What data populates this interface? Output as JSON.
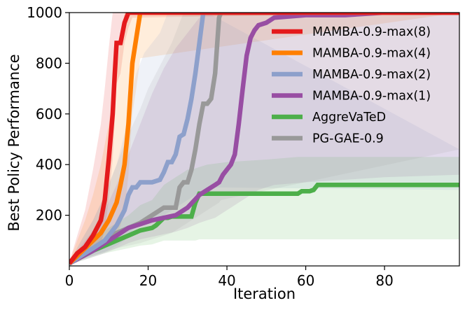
{
  "chart_data": {
    "type": "line",
    "title": "",
    "xlabel": "Iteration",
    "ylabel": "Best Policy Performance",
    "xlim": [
      0,
      99
    ],
    "ylim": [
      0,
      1000
    ],
    "xticks": [
      0,
      20,
      40,
      60,
      80
    ],
    "yticks": [
      200,
      400,
      600,
      800,
      1000
    ],
    "x_tick_labels": [
      "0",
      "20",
      "40",
      "60",
      "80"
    ],
    "y_tick_labels": [
      "200",
      "400",
      "600",
      "800",
      "1000"
    ],
    "legend_position": "top-right",
    "grid": false,
    "series": [
      {
        "name": "MAMBA-0.9-max(8)",
        "color": "#e41a1c",
        "x": [
          0,
          2,
          4,
          6,
          8,
          9,
          10,
          11,
          11.5,
          12,
          13,
          14,
          15,
          16,
          99
        ],
        "y": [
          10,
          50,
          75,
          120,
          180,
          260,
          420,
          600,
          750,
          880,
          880,
          960,
          1000,
          1000,
          1000
        ],
        "band_upper": [
          15,
          120,
          220,
          380,
          560,
          700,
          860,
          1000,
          1000,
          1000,
          1000,
          1000,
          1000,
          1000,
          1000
        ],
        "band_lower": [
          5,
          30,
          40,
          60,
          90,
          140,
          260,
          420,
          560,
          720,
          760,
          880,
          940,
          980,
          1000
        ]
      },
      {
        "name": "MAMBA-0.9-max(4)",
        "color": "#ff7f00",
        "x": [
          0,
          2,
          4,
          6,
          8,
          10,
          12,
          13,
          14,
          15,
          15.5,
          16,
          17,
          18,
          99
        ],
        "y": [
          10,
          40,
          70,
          100,
          130,
          180,
          250,
          320,
          400,
          560,
          680,
          800,
          900,
          1000,
          1000
        ],
        "band_upper": [
          15,
          100,
          180,
          280,
          400,
          560,
          760,
          900,
          1000,
          1000,
          1000,
          1000,
          1000,
          1000,
          1000
        ],
        "band_lower": [
          5,
          25,
          40,
          55,
          70,
          90,
          120,
          160,
          220,
          360,
          480,
          600,
          700,
          820,
          1000
        ]
      },
      {
        "name": "MAMBA-0.9-max(2)",
        "color": "#8da0cb",
        "x": [
          0,
          3,
          6,
          9,
          12,
          14,
          15,
          16,
          17,
          18,
          19,
          21,
          23,
          24,
          25,
          26,
          27,
          28,
          29,
          30,
          31,
          32,
          33,
          34,
          35,
          99
        ],
        "y": [
          10,
          40,
          70,
          100,
          160,
          220,
          280,
          310,
          310,
          330,
          330,
          330,
          340,
          370,
          410,
          410,
          440,
          510,
          520,
          580,
          660,
          760,
          880,
          1000,
          1000,
          1000
        ],
        "band_upper": [
          15,
          100,
          180,
          280,
          400,
          520,
          620,
          700,
          760,
          800,
          840,
          880,
          920,
          960,
          1000,
          1000,
          1000,
          1000,
          1000,
          1000,
          1000,
          1000,
          1000,
          1000,
          1000,
          460
        ],
        "band_lower": [
          5,
          25,
          40,
          55,
          80,
          100,
          120,
          140,
          150,
          160,
          170,
          180,
          190,
          200,
          210,
          220,
          230,
          240,
          250,
          260,
          270,
          280,
          290,
          300,
          310,
          300
        ]
      },
      {
        "name": "MAMBA-0.9-max(1)",
        "color": "#984ea3",
        "x": [
          0,
          3,
          6,
          9,
          12,
          15,
          18,
          21,
          24,
          27,
          30,
          33,
          35,
          37,
          38,
          39,
          40,
          41,
          42,
          43,
          44,
          45,
          46,
          47,
          48,
          50,
          52,
          60,
          70,
          80,
          99
        ],
        "y": [
          10,
          35,
          60,
          90,
          120,
          150,
          165,
          180,
          190,
          200,
          230,
          280,
          300,
          320,
          330,
          360,
          380,
          400,
          440,
          560,
          700,
          830,
          900,
          930,
          950,
          960,
          980,
          990,
          990,
          1000,
          1000
        ],
        "band_upper": [
          15,
          80,
          140,
          220,
          320,
          440,
          560,
          680,
          780,
          860,
          920,
          980,
          1000,
          1000,
          1000,
          1000,
          1000,
          1000,
          1000,
          1000,
          1000,
          1000,
          1000,
          1000,
          1000,
          1000,
          1000,
          1000,
          1000,
          1000,
          1000
        ],
        "band_lower": [
          5,
          20,
          35,
          50,
          70,
          90,
          105,
          115,
          125,
          135,
          150,
          170,
          180,
          190,
          200,
          210,
          220,
          230,
          240,
          250,
          260,
          270,
          280,
          290,
          300,
          310,
          320,
          330,
          340,
          350,
          360
        ]
      },
      {
        "name": "AggreVaTeD",
        "color": "#4daf4a",
        "x": [
          0,
          3,
          6,
          9,
          12,
          15,
          18,
          21,
          22,
          23,
          24,
          25,
          26,
          27,
          28,
          29,
          30,
          31,
          32,
          33,
          35,
          40,
          50,
          58,
          59,
          61,
          62,
          63,
          70,
          80,
          90,
          99
        ],
        "y": [
          10,
          35,
          60,
          80,
          100,
          120,
          140,
          150,
          160,
          175,
          190,
          190,
          195,
          195,
          195,
          195,
          195,
          195,
          250,
          285,
          285,
          285,
          285,
          285,
          295,
          295,
          300,
          320,
          320,
          320,
          320,
          320
        ],
        "band_upper": [
          15,
          60,
          100,
          140,
          170,
          200,
          240,
          260,
          280,
          300,
          320,
          330,
          340,
          350,
          360,
          370,
          380,
          380,
          385,
          390,
          400,
          410,
          420,
          430,
          430,
          430,
          430,
          430,
          430,
          430,
          430,
          430
        ],
        "band_lower": [
          5,
          20,
          35,
          50,
          60,
          70,
          80,
          85,
          90,
          95,
          100,
          100,
          100,
          100,
          100,
          100,
          100,
          100,
          100,
          105,
          105,
          105,
          105,
          105,
          105,
          105,
          105,
          105,
          105,
          105,
          105,
          105
        ]
      },
      {
        "name": "PG-GAE-0.9",
        "color": "#999999",
        "x": [
          0,
          3,
          6,
          9,
          12,
          15,
          18,
          20,
          22,
          24,
          26,
          27,
          28,
          29,
          30,
          31,
          32,
          33,
          34,
          35,
          36,
          37,
          38,
          38.5,
          99
        ],
        "y": [
          10,
          40,
          70,
          100,
          130,
          150,
          170,
          190,
          210,
          230,
          230,
          230,
          310,
          330,
          330,
          380,
          460,
          560,
          640,
          640,
          660,
          760,
          980,
          1000,
          1000
        ],
        "band_upper": [
          15,
          100,
          180,
          280,
          400,
          520,
          620,
          700,
          760,
          820,
          880,
          920,
          960,
          1000,
          1000,
          1000,
          1000,
          1000,
          1000,
          1000,
          1000,
          1000,
          1000,
          1000,
          1000
        ],
        "band_lower": [
          5,
          25,
          40,
          55,
          70,
          80,
          90,
          100,
          110,
          120,
          130,
          140,
          150,
          160,
          170,
          180,
          190,
          200,
          210,
          220,
          230,
          240,
          250,
          260,
          460
        ]
      }
    ]
  }
}
